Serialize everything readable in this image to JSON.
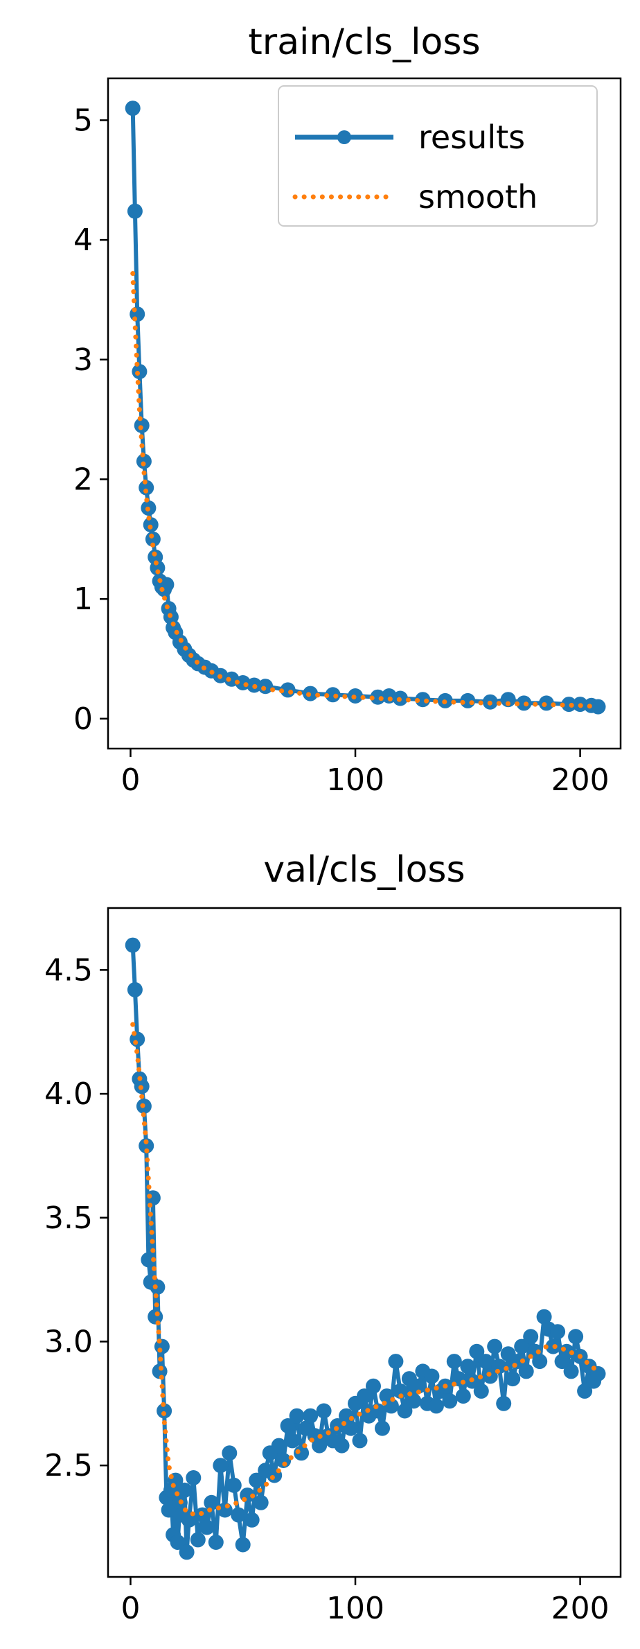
{
  "chart_data": [
    {
      "type": "line",
      "title": "train/cls_loss",
      "xlabel": "",
      "ylabel": "",
      "xlim": [
        -10,
        218
      ],
      "ylim": [
        -0.25,
        5.35
      ],
      "xticks": [
        0,
        100,
        200
      ],
      "yticks": [
        0,
        1,
        2,
        3,
        4,
        5
      ],
      "grid": false,
      "legend": {
        "placement": "upper-right",
        "entries": [
          {
            "name": "results",
            "color": "#1f77b4",
            "style": "solid-line-with-dot-markers"
          },
          {
            "name": "smooth",
            "color": "#ff7f0e",
            "style": "dotted"
          }
        ]
      },
      "series": [
        {
          "name": "results",
          "color": "#1f77b4",
          "x": [
            1,
            2,
            3,
            4,
            5,
            6,
            7,
            8,
            9,
            10,
            11,
            12,
            13,
            14,
            15,
            16,
            17,
            18,
            19,
            20,
            22,
            24,
            26,
            28,
            30,
            33,
            36,
            40,
            45,
            50,
            55,
            60,
            70,
            80,
            90,
            100,
            110,
            115,
            120,
            130,
            140,
            150,
            160,
            168,
            175,
            185,
            195,
            200,
            205,
            208
          ],
          "y": [
            5.1,
            4.24,
            3.38,
            2.9,
            2.45,
            2.15,
            1.93,
            1.76,
            1.62,
            1.5,
            1.35,
            1.26,
            1.15,
            1.1,
            1.08,
            1.12,
            0.92,
            0.85,
            0.76,
            0.72,
            0.64,
            0.58,
            0.53,
            0.49,
            0.46,
            0.43,
            0.4,
            0.36,
            0.33,
            0.3,
            0.28,
            0.27,
            0.24,
            0.21,
            0.2,
            0.19,
            0.18,
            0.19,
            0.17,
            0.16,
            0.15,
            0.15,
            0.14,
            0.16,
            0.13,
            0.13,
            0.12,
            0.12,
            0.11,
            0.1
          ]
        },
        {
          "name": "smooth",
          "color": "#ff7f0e",
          "x": [
            1,
            2,
            3,
            4,
            5,
            6,
            7,
            8,
            10,
            12,
            14,
            16,
            18,
            20,
            24,
            28,
            32,
            40,
            50,
            60,
            80,
            100,
            120,
            140,
            160,
            180,
            200,
            208
          ],
          "y": [
            3.72,
            3.3,
            2.92,
            2.58,
            2.3,
            2.06,
            1.86,
            1.7,
            1.44,
            1.24,
            1.08,
            0.95,
            0.84,
            0.74,
            0.6,
            0.5,
            0.43,
            0.35,
            0.29,
            0.25,
            0.2,
            0.18,
            0.16,
            0.14,
            0.13,
            0.12,
            0.11,
            0.1
          ]
        }
      ]
    },
    {
      "type": "line",
      "title": "val/cls_loss",
      "xlabel": "",
      "ylabel": "",
      "xlim": [
        -10,
        218
      ],
      "ylim": [
        2.05,
        4.75
      ],
      "xticks": [
        0,
        100,
        200
      ],
      "yticks": [
        2.5,
        3.0,
        3.5,
        4.0,
        4.5
      ],
      "ytick_labels": [
        "2.5",
        "3.0",
        "3.5",
        "4.0",
        "4.5"
      ],
      "grid": false,
      "series": [
        {
          "name": "results",
          "color": "#1f77b4",
          "x": [
            1,
            2,
            3,
            4,
            5,
            6,
            7,
            8,
            9,
            10,
            11,
            12,
            13,
            14,
            15,
            16,
            17,
            18,
            19,
            20,
            21,
            22,
            23,
            24,
            25,
            26,
            28,
            30,
            32,
            34,
            36,
            38,
            40,
            42,
            44,
            46,
            48,
            50,
            52,
            54,
            56,
            58,
            60,
            62,
            64,
            66,
            68,
            70,
            72,
            74,
            76,
            78,
            80,
            82,
            84,
            86,
            88,
            90,
            92,
            94,
            96,
            98,
            100,
            102,
            104,
            106,
            108,
            110,
            112,
            114,
            116,
            118,
            120,
            122,
            124,
            126,
            128,
            130,
            132,
            134,
            136,
            138,
            140,
            142,
            144,
            146,
            148,
            150,
            152,
            154,
            156,
            158,
            160,
            162,
            164,
            166,
            168,
            170,
            172,
            174,
            176,
            178,
            180,
            182,
            184,
            186,
            188,
            190,
            192,
            194,
            196,
            198,
            200,
            202,
            204,
            206,
            208
          ],
          "y": [
            4.6,
            4.42,
            4.22,
            4.06,
            4.03,
            3.95,
            3.79,
            3.33,
            3.24,
            3.58,
            3.1,
            3.22,
            2.88,
            2.98,
            2.72,
            2.37,
            2.32,
            2.4,
            2.22,
            2.44,
            2.19,
            2.35,
            2.3,
            2.4,
            2.15,
            2.28,
            2.45,
            2.2,
            2.3,
            2.25,
            2.35,
            2.19,
            2.5,
            2.32,
            2.55,
            2.42,
            2.3,
            2.18,
            2.38,
            2.28,
            2.44,
            2.35,
            2.48,
            2.55,
            2.46,
            2.58,
            2.52,
            2.66,
            2.6,
            2.7,
            2.55,
            2.65,
            2.7,
            2.62,
            2.58,
            2.72,
            2.62,
            2.6,
            2.66,
            2.58,
            2.7,
            2.65,
            2.75,
            2.6,
            2.78,
            2.7,
            2.82,
            2.72,
            2.65,
            2.78,
            2.74,
            2.92,
            2.8,
            2.72,
            2.85,
            2.76,
            2.82,
            2.88,
            2.75,
            2.86,
            2.74,
            2.8,
            2.82,
            2.76,
            2.92,
            2.85,
            2.78,
            2.9,
            2.84,
            2.96,
            2.8,
            2.92,
            2.86,
            2.98,
            2.9,
            2.75,
            2.95,
            2.85,
            2.92,
            2.98,
            2.88,
            3.02,
            2.96,
            2.92,
            3.1,
            3.05,
            2.98,
            3.04,
            2.92,
            2.96,
            2.88,
            3.02,
            2.94,
            2.8,
            2.9,
            2.84,
            2.87
          ]
        },
        {
          "name": "smooth",
          "color": "#ff7f0e",
          "x": [
            1,
            3,
            5,
            7,
            9,
            11,
            13,
            15,
            17,
            19,
            22,
            25,
            30,
            35,
            40,
            45,
            50,
            55,
            60,
            70,
            80,
            90,
            100,
            110,
            120,
            130,
            140,
            150,
            160,
            170,
            180,
            185,
            190,
            195,
            200,
            205,
            208
          ],
          "y": [
            4.28,
            4.16,
            3.99,
            3.8,
            3.5,
            3.22,
            2.98,
            2.68,
            2.5,
            2.42,
            2.36,
            2.31,
            2.3,
            2.32,
            2.33,
            2.34,
            2.36,
            2.38,
            2.42,
            2.52,
            2.6,
            2.64,
            2.7,
            2.74,
            2.78,
            2.8,
            2.82,
            2.84,
            2.87,
            2.9,
            2.95,
            2.98,
            2.98,
            2.96,
            2.94,
            2.9,
            2.88
          ]
        }
      ]
    }
  ]
}
